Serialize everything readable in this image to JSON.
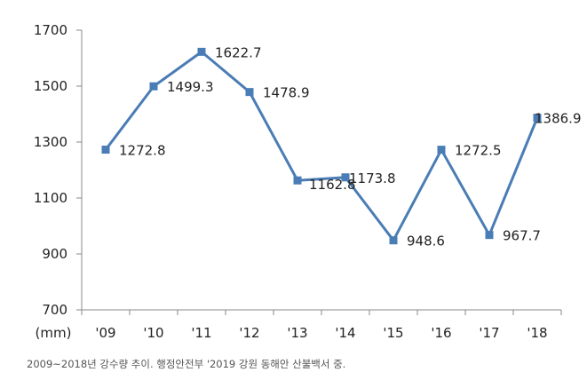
{
  "chart_data": {
    "type": "line",
    "categories": [
      "'09",
      "'10",
      "'11",
      "'12",
      "'13",
      "'14",
      "'15",
      "'16",
      "'17",
      "'18"
    ],
    "series": [
      {
        "values": [
          1272.8,
          1499.3,
          1622.7,
          1478.9,
          1162.8,
          1173.8,
          948.6,
          1272.5,
          967.7,
          1386.9
        ]
      }
    ],
    "data_labels": [
      "1272.8",
      "1499.3",
      "1622.7",
      "1478.9",
      "1162.8",
      "1173.8",
      "948.6",
      "1272.5",
      "967.7",
      "1386.9"
    ],
    "ylim": [
      700,
      1700
    ],
    "yticks": [
      "700",
      "900",
      "1100",
      "1300",
      "1500",
      "1700"
    ],
    "ylabel": "(mm)",
    "grid": false,
    "legend": "none",
    "line_color": "#4a7cb5"
  },
  "caption": "2009~2018년 강수량 추이. 행정안전부 '2019 강원 동해안 산불백서 중."
}
